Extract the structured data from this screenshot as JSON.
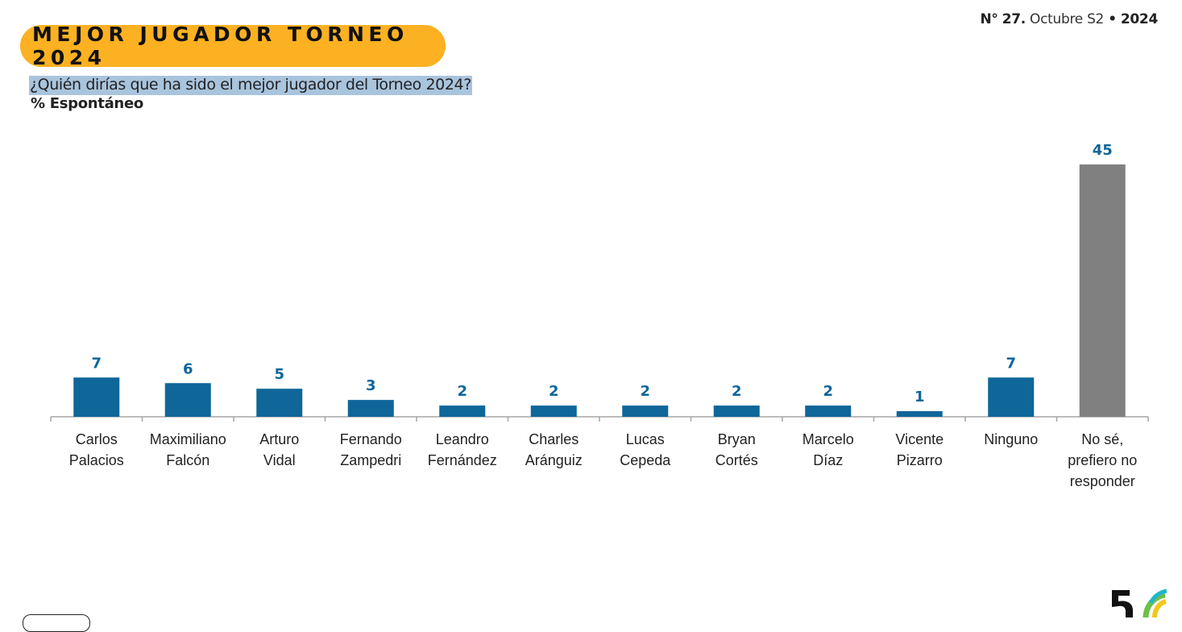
{
  "header": {
    "issue_prefix": "N°",
    "issue_number": "27.",
    "issue_month": "Octubre S2",
    "issue_sep": "•",
    "issue_year": "2024",
    "title": "MEJOR JUGADOR TORNEO 2024",
    "question": "¿Quién dirías que ha sido el mejor jugador del Torneo 2024?",
    "subtitle": "% Espontáneo"
  },
  "colors": {
    "accent": "#fbb122",
    "bar": "#0f6699",
    "bar_other": "#808080",
    "value_label": "#0f6699",
    "highlight": "#a9c4dd"
  },
  "chart_data": {
    "type": "bar",
    "categories": [
      [
        "Carlos",
        "Palacios"
      ],
      [
        "Maximiliano",
        "Falcón"
      ],
      [
        "Arturo",
        "Vidal"
      ],
      [
        "Fernando",
        "Zampedri"
      ],
      [
        "Leandro",
        "Fernández"
      ],
      [
        "Charles",
        "Aránguiz"
      ],
      [
        "Lucas",
        "Cepeda"
      ],
      [
        "Bryan",
        "Cortés"
      ],
      [
        "Marcelo",
        "Díaz"
      ],
      [
        "Vicente",
        "Pizarro"
      ],
      [
        "Ninguno"
      ],
      [
        "No sé,",
        "prefiero no",
        "responder"
      ]
    ],
    "values": [
      7,
      6,
      5,
      3,
      2,
      2,
      2,
      2,
      2,
      1,
      7,
      45
    ],
    "highlight_last": true,
    "grid": false,
    "legend": "none"
  }
}
